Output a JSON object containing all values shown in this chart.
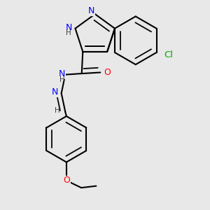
{
  "background_color": "#e8e8e8",
  "colors": {
    "N": "#0000ff",
    "O": "#ff0000",
    "Cl": "#00aa00",
    "C": "#000000",
    "H": "#555555",
    "bond": "#000000"
  },
  "bond_lw": 1.5,
  "font_size": 9.0,
  "fig_size": [
    3.0,
    3.0
  ],
  "dpi": 100
}
